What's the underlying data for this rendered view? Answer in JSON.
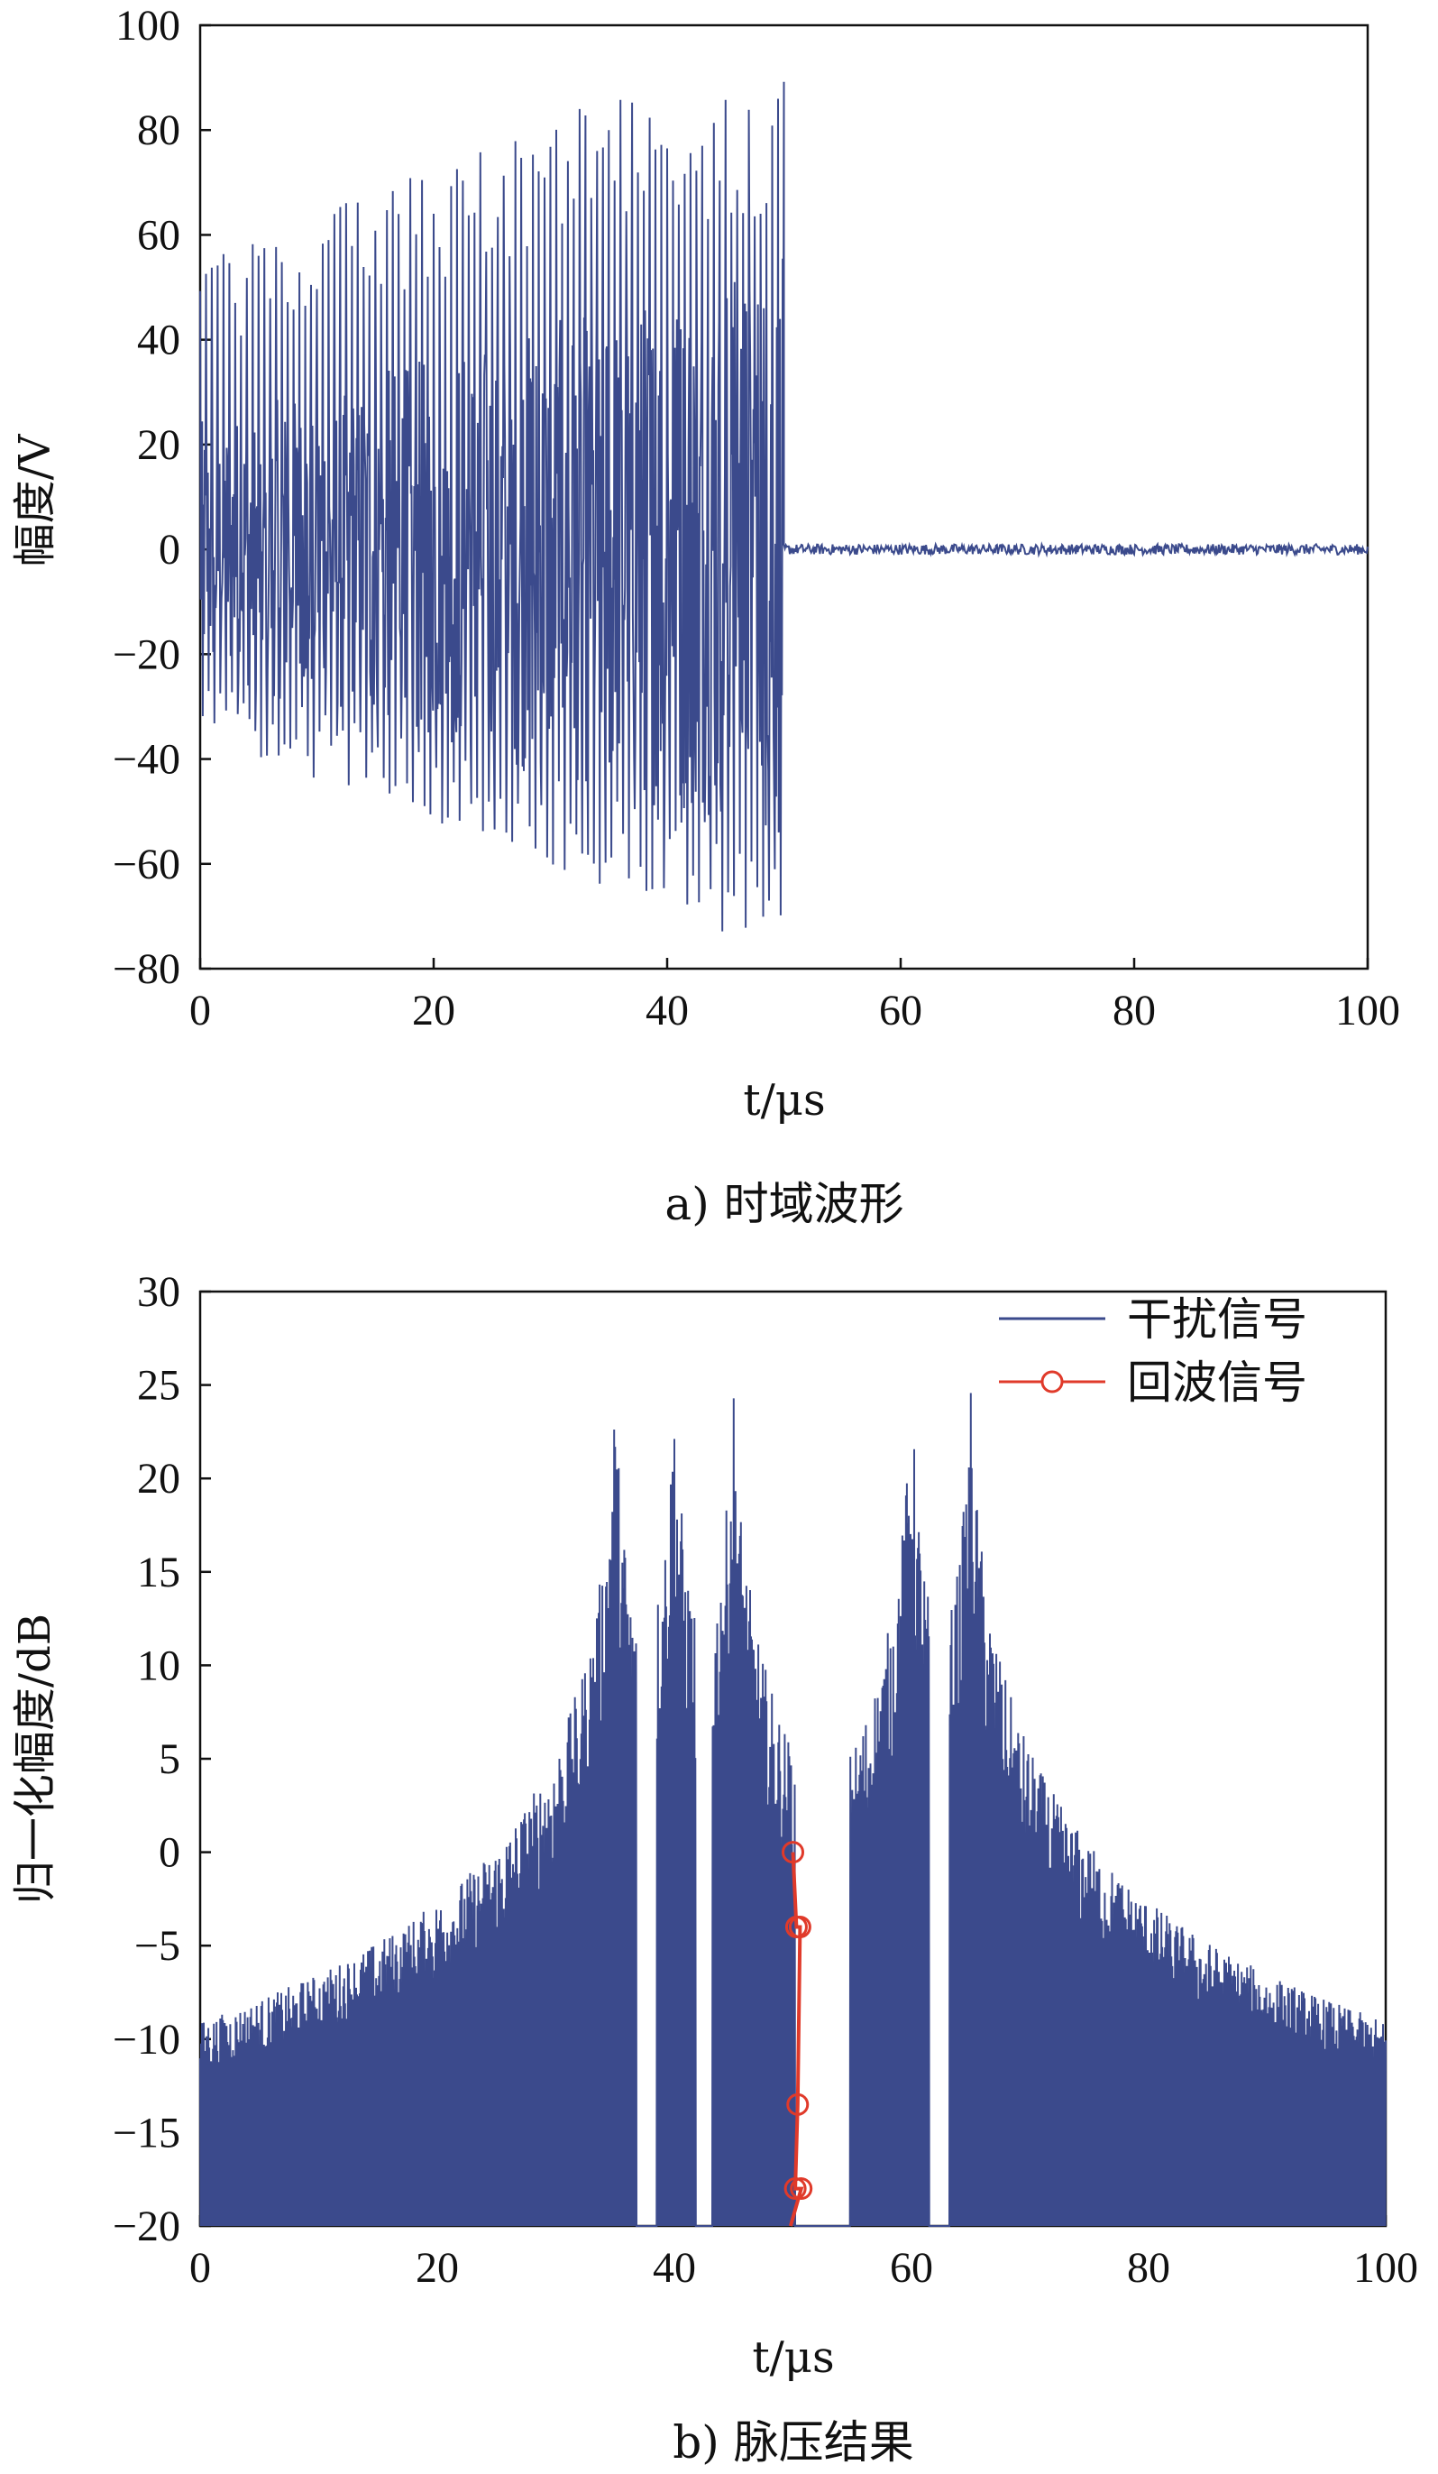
{
  "chart_data": [
    {
      "type": "line",
      "caption": "a) 时域波形",
      "xlabel": "t/μs",
      "ylabel": "幅度/V",
      "xlim": [
        0,
        100
      ],
      "ylim": [
        -80,
        100
      ],
      "xticks": [
        "0",
        "20",
        "40",
        "60",
        "80",
        "100"
      ],
      "yticks": [
        "100",
        "80",
        "60",
        "40",
        "20",
        "0",
        "-20",
        "-40",
        "-60",
        "-80"
      ],
      "grid": false,
      "colors": {
        "line": "#3b4a8c"
      },
      "series": [
        {
          "segments": [
            {
              "x_range": [
                0,
                50
              ],
              "description_values": {
                "max": 90,
                "min": -78
              }
            },
            {
              "x_range": [
                50,
                100
              ],
              "amplitude": 1
            }
          ]
        }
      ]
    },
    {
      "type": "line",
      "caption": "b) 脉压结果",
      "xlabel": "t/μs",
      "ylabel": "归一化幅度/dB",
      "xlim": [
        0,
        100
      ],
      "ylim": [
        -20,
        30
      ],
      "xticks": [
        "0",
        "20",
        "40",
        "60",
        "80",
        "100"
      ],
      "yticks": [
        "30",
        "25",
        "20",
        "15",
        "10",
        "5",
        "0",
        "-5",
        "-10",
        "-15",
        "-20"
      ],
      "grid": false,
      "legend_position": "top-right",
      "colors": {
        "interference": "#3b4a8c",
        "echo": "#e03a2a"
      },
      "series": [
        {
          "name": "干扰信号",
          "peaks_x": [
            35,
            40,
            45,
            60,
            65
          ],
          "peak_value": 25,
          "floor": -20
        },
        {
          "name": "回波信号",
          "x": [
            50,
            50.3,
            50.6,
            50.4,
            50.2,
            50.7
          ],
          "y": [
            0,
            -4,
            -4,
            -13.5,
            -18,
            -18
          ],
          "markers": "circle"
        }
      ]
    }
  ]
}
